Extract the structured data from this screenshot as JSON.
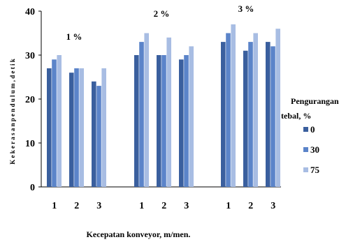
{
  "chart_data": {
    "type": "bar",
    "ylabel": "K e k e r a s a n   p e n d u l u m ,   d e t i k",
    "xlabel": "Kecepatan konveyor, m/men.",
    "ylim": [
      0,
      40
    ],
    "yticks": [
      0,
      10,
      20,
      30,
      40
    ],
    "grid": false,
    "legend_title": [
      "Pengurangan",
      "tebal, %"
    ],
    "legend_position": "right",
    "groups": [
      {
        "label": "1 %",
        "categories": [
          "1",
          "2",
          "3"
        ],
        "series": [
          {
            "name": "0",
            "values": [
              27,
              26,
              24
            ]
          },
          {
            "name": "30",
            "values": [
              29,
              27,
              23
            ]
          },
          {
            "name": "75",
            "values": [
              30,
              27,
              27
            ]
          }
        ]
      },
      {
        "label": "2 %",
        "categories": [
          "1",
          "2",
          "3"
        ],
        "series": [
          {
            "name": "0",
            "values": [
              30,
              30,
              29
            ]
          },
          {
            "name": "30",
            "values": [
              33,
              30,
              30
            ]
          },
          {
            "name": "75",
            "values": [
              35,
              34,
              32
            ]
          }
        ]
      },
      {
        "label": "3 %",
        "categories": [
          "1",
          "2",
          "3"
        ],
        "series": [
          {
            "name": "0",
            "values": [
              33,
              31,
              33
            ]
          },
          {
            "name": "30",
            "values": [
              35,
              33,
              32
            ]
          },
          {
            "name": "75",
            "values": [
              37,
              35,
              36
            ]
          }
        ]
      }
    ],
    "colors": [
      "#3a5f9e",
      "#5b84c9",
      "#a8bde3"
    ]
  }
}
